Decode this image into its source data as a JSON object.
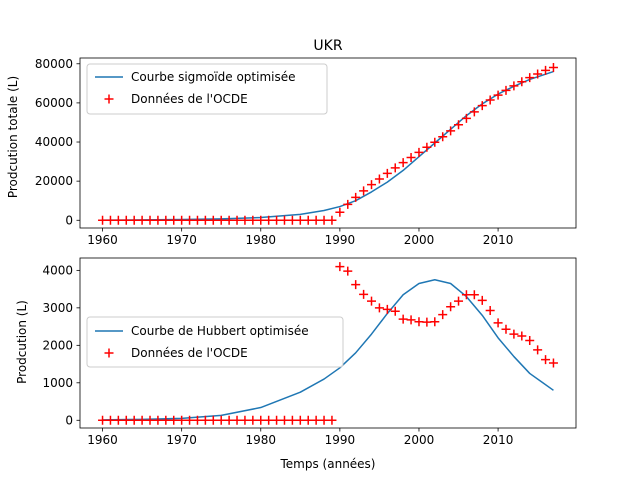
{
  "chart_data": [
    {
      "type": "line",
      "title": "UKR",
      "xlabel": "",
      "ylabel": "Prodcution totale (L)",
      "xlim": [
        1957.15,
        2019.85
      ],
      "ylim": [
        -3950,
        82950
      ],
      "xticks": [
        1960,
        1970,
        1980,
        1990,
        2000,
        2010
      ],
      "yticks": [
        0,
        20000,
        40000,
        60000,
        80000
      ],
      "legend_position": "upper-left",
      "series": [
        {
          "name": "Courbe sigmoïde optimisée",
          "kind": "line",
          "color": "#1f77b4",
          "x": [
            1960,
            1965,
            1970,
            1975,
            1980,
            1985,
            1988,
            1990,
            1992,
            1994,
            1996,
            1998,
            2000,
            2002,
            2004,
            2006,
            2008,
            2010,
            2012,
            2014,
            2017
          ],
          "y": [
            100,
            200,
            400,
            700,
            1400,
            3000,
            5000,
            7000,
            10000,
            14500,
            19500,
            25500,
            32500,
            39500,
            46500,
            53500,
            59500,
            64500,
            68500,
            72000,
            76000
          ]
        },
        {
          "name": "Données de l'OCDE",
          "kind": "scatter",
          "marker": "+",
          "color": "#ff0000",
          "x": [
            1960,
            1961,
            1962,
            1963,
            1964,
            1965,
            1966,
            1967,
            1968,
            1969,
            1970,
            1971,
            1972,
            1973,
            1974,
            1975,
            1976,
            1977,
            1978,
            1979,
            1980,
            1981,
            1982,
            1983,
            1984,
            1985,
            1986,
            1987,
            1988,
            1989,
            1990,
            1991,
            1992,
            1993,
            1994,
            1995,
            1996,
            1997,
            1998,
            1999,
            2000,
            2001,
            2002,
            2003,
            2004,
            2005,
            2006,
            2007,
            2008,
            2009,
            2010,
            2011,
            2012,
            2013,
            2014,
            2015,
            2016,
            2017
          ],
          "y": [
            0,
            0,
            0,
            0,
            0,
            0,
            0,
            0,
            0,
            0,
            0,
            0,
            0,
            0,
            0,
            0,
            0,
            0,
            0,
            0,
            0,
            0,
            0,
            0,
            0,
            0,
            0,
            0,
            0,
            0,
            4100,
            8100,
            11700,
            15000,
            18200,
            21100,
            24000,
            26800,
            29500,
            32100,
            34700,
            37300,
            39900,
            42700,
            45700,
            48800,
            52100,
            55400,
            58600,
            61500,
            64000,
            66400,
            68700,
            70800,
            72900,
            74800,
            76600,
            78100
          ]
        }
      ]
    },
    {
      "type": "line",
      "title": "",
      "xlabel": "Temps (années)",
      "ylabel": "Prodcution (L)",
      "xlim": [
        1957.15,
        2019.85
      ],
      "ylim": [
        -206,
        4330
      ],
      "xticks": [
        1960,
        1970,
        1980,
        1990,
        2000,
        2010
      ],
      "yticks": [
        0,
        1000,
        2000,
        3000,
        4000
      ],
      "legend_position": "center-left",
      "series": [
        {
          "name": "Courbe de Hubbert optimisée",
          "kind": "line",
          "color": "#1f77b4",
          "x": [
            1960,
            1965,
            1970,
            1975,
            1980,
            1985,
            1988,
            1990,
            1992,
            1994,
            1996,
            1998,
            2000,
            2002,
            2004,
            2006,
            2008,
            2010,
            2012,
            2014,
            2017
          ],
          "y": [
            10,
            25,
            50,
            130,
            340,
            750,
            1100,
            1400,
            1800,
            2300,
            2850,
            3350,
            3650,
            3750,
            3650,
            3300,
            2800,
            2200,
            1700,
            1250,
            800
          ]
        },
        {
          "name": "Données de l'OCDE",
          "kind": "scatter",
          "marker": "+",
          "color": "#ff0000",
          "x": [
            1960,
            1961,
            1962,
            1963,
            1964,
            1965,
            1966,
            1967,
            1968,
            1969,
            1970,
            1971,
            1972,
            1973,
            1974,
            1975,
            1976,
            1977,
            1978,
            1979,
            1980,
            1981,
            1982,
            1983,
            1984,
            1985,
            1986,
            1987,
            1988,
            1989,
            1990,
            1991,
            1992,
            1993,
            1994,
            1995,
            1996,
            1997,
            1998,
            1999,
            2000,
            2001,
            2002,
            2003,
            2004,
            2005,
            2006,
            2007,
            2008,
            2009,
            2010,
            2011,
            2012,
            2013,
            2014,
            2015,
            2016,
            2017
          ],
          "y": [
            0,
            0,
            0,
            0,
            0,
            0,
            0,
            0,
            0,
            0,
            0,
            0,
            0,
            0,
            0,
            0,
            0,
            0,
            0,
            0,
            0,
            0,
            0,
            0,
            0,
            0,
            0,
            0,
            0,
            0,
            4100,
            3980,
            3620,
            3360,
            3180,
            3000,
            2960,
            2910,
            2700,
            2680,
            2630,
            2620,
            2630,
            2820,
            3030,
            3180,
            3350,
            3350,
            3200,
            2930,
            2600,
            2430,
            2300,
            2250,
            2130,
            1880,
            1620,
            1530
          ]
        }
      ]
    }
  ]
}
